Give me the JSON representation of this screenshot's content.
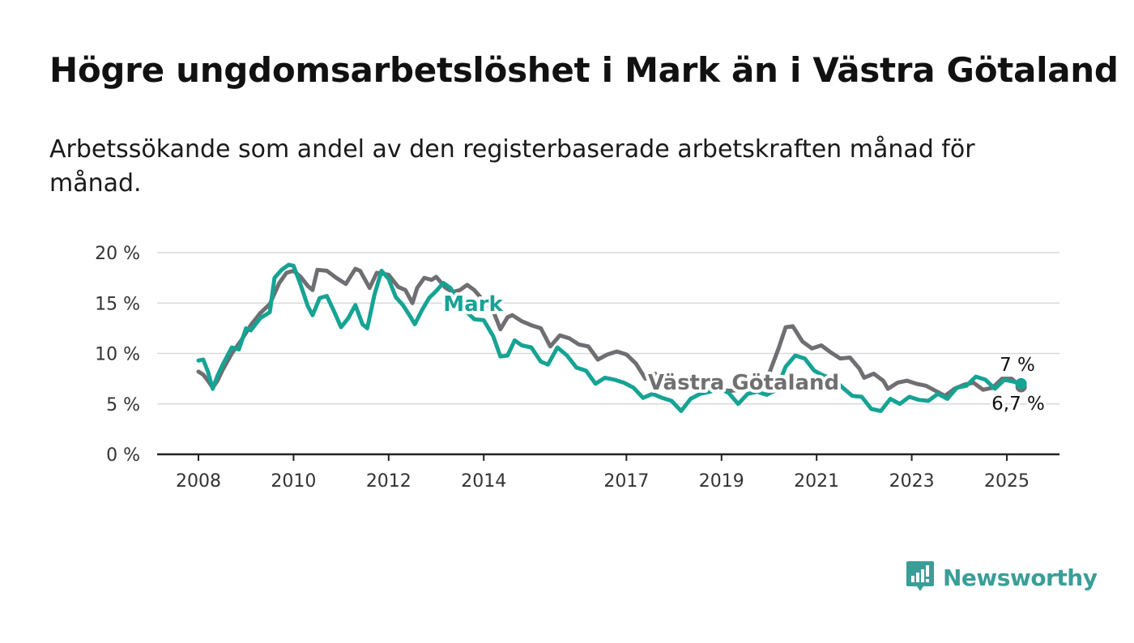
{
  "header": {
    "title": "Högre ungdomsarbetslöshet i Mark än i Västra Götaland",
    "subtitle": "Arbetssökande som andel av den registerbaserade arbetskraften månad för månad."
  },
  "brand": {
    "name": "Newsworthy",
    "color": "#3a9e98",
    "icon": "newsworthy-logo-icon"
  },
  "chart_data": {
    "type": "line",
    "xlabel": "",
    "ylabel": "",
    "ylim": [
      0,
      20
    ],
    "xlim": [
      2007.5,
      2026.5
    ],
    "y_ticks": [
      "0 %",
      "5 %",
      "10 %",
      "15 %",
      "20 %"
    ],
    "x_ticks": [
      "2008",
      "2010",
      "2012",
      "2014",
      "2017",
      "2019",
      "2021",
      "2023",
      "2025"
    ],
    "grid": true,
    "legend": "inline labels",
    "series": [
      {
        "name": "Västra Götaland",
        "color": "#6e6e73",
        "end_label": "6,7 %",
        "points": [
          [
            2008.0,
            8.2
          ],
          [
            2008.1,
            7.9
          ],
          [
            2008.2,
            7.3
          ],
          [
            2008.3,
            6.6
          ],
          [
            2008.4,
            7.3
          ],
          [
            2008.5,
            8.3
          ],
          [
            2008.7,
            10.0
          ],
          [
            2008.9,
            11.3
          ],
          [
            2009.1,
            12.8
          ],
          [
            2009.3,
            14.0
          ],
          [
            2009.5,
            14.9
          ],
          [
            2009.7,
            17.0
          ],
          [
            2009.85,
            18.0
          ],
          [
            2010.0,
            18.2
          ],
          [
            2010.15,
            17.6
          ],
          [
            2010.3,
            16.7
          ],
          [
            2010.4,
            16.3
          ],
          [
            2010.5,
            18.3
          ],
          [
            2010.7,
            18.2
          ],
          [
            2010.9,
            17.5
          ],
          [
            2011.1,
            16.9
          ],
          [
            2011.3,
            18.4
          ],
          [
            2011.4,
            18.2
          ],
          [
            2011.6,
            16.5
          ],
          [
            2011.75,
            18.0
          ],
          [
            2012.0,
            17.8
          ],
          [
            2012.2,
            16.6
          ],
          [
            2012.35,
            16.3
          ],
          [
            2012.5,
            15.0
          ],
          [
            2012.6,
            16.5
          ],
          [
            2012.75,
            17.5
          ],
          [
            2012.9,
            17.3
          ],
          [
            2013.0,
            17.6
          ],
          [
            2013.2,
            16.5
          ],
          [
            2013.35,
            16.1
          ],
          [
            2013.5,
            16.3
          ],
          [
            2013.65,
            16.8
          ],
          [
            2013.8,
            16.3
          ],
          [
            2014.0,
            15.2
          ],
          [
            2014.2,
            14.2
          ],
          [
            2014.35,
            12.4
          ],
          [
            2014.5,
            13.6
          ],
          [
            2014.6,
            13.8
          ],
          [
            2014.8,
            13.2
          ],
          [
            2015.0,
            12.8
          ],
          [
            2015.2,
            12.5
          ],
          [
            2015.4,
            10.7
          ],
          [
            2015.6,
            11.8
          ],
          [
            2015.8,
            11.5
          ],
          [
            2016.0,
            10.9
          ],
          [
            2016.2,
            10.7
          ],
          [
            2016.4,
            9.4
          ],
          [
            2016.6,
            9.9
          ],
          [
            2016.8,
            10.2
          ],
          [
            2017.0,
            9.9
          ],
          [
            2017.2,
            9.0
          ],
          [
            2017.4,
            7.5
          ],
          [
            2017.6,
            8.0
          ],
          [
            2017.8,
            7.3
          ],
          [
            2018.0,
            7.2
          ],
          [
            2018.3,
            6.6
          ],
          [
            2018.6,
            6.8
          ],
          [
            2018.9,
            6.4
          ],
          [
            2019.2,
            6.3
          ],
          [
            2019.5,
            6.5
          ],
          [
            2019.8,
            6.5
          ],
          [
            2020.0,
            8.0
          ],
          [
            2020.2,
            10.5
          ],
          [
            2020.35,
            12.6
          ],
          [
            2020.5,
            12.7
          ],
          [
            2020.7,
            11.2
          ],
          [
            2020.9,
            10.5
          ],
          [
            2021.1,
            10.8
          ],
          [
            2021.3,
            10.1
          ],
          [
            2021.5,
            9.5
          ],
          [
            2021.7,
            9.6
          ],
          [
            2021.9,
            8.5
          ],
          [
            2022.0,
            7.6
          ],
          [
            2022.2,
            8.0
          ],
          [
            2022.4,
            7.3
          ],
          [
            2022.5,
            6.5
          ],
          [
            2022.7,
            7.1
          ],
          [
            2022.9,
            7.3
          ],
          [
            2023.1,
            7.0
          ],
          [
            2023.3,
            6.8
          ],
          [
            2023.5,
            6.3
          ],
          [
            2023.7,
            5.8
          ],
          [
            2023.9,
            6.5
          ],
          [
            2024.1,
            6.9
          ],
          [
            2024.3,
            7.1
          ],
          [
            2024.5,
            6.4
          ],
          [
            2024.7,
            6.6
          ],
          [
            2024.9,
            7.5
          ],
          [
            2025.1,
            7.5
          ],
          [
            2025.3,
            6.7
          ]
        ]
      },
      {
        "name": "Mark",
        "color": "#16a394",
        "end_label": "7 %",
        "points": [
          [
            2008.0,
            9.3
          ],
          [
            2008.1,
            9.4
          ],
          [
            2008.2,
            8.2
          ],
          [
            2008.3,
            6.5
          ],
          [
            2008.4,
            7.8
          ],
          [
            2008.5,
            8.8
          ],
          [
            2008.7,
            10.6
          ],
          [
            2008.85,
            10.4
          ],
          [
            2009.0,
            12.5
          ],
          [
            2009.1,
            12.3
          ],
          [
            2009.3,
            13.5
          ],
          [
            2009.5,
            14.1
          ],
          [
            2009.6,
            17.5
          ],
          [
            2009.75,
            18.3
          ],
          [
            2009.9,
            18.8
          ],
          [
            2010.0,
            18.7
          ],
          [
            2010.15,
            16.8
          ],
          [
            2010.3,
            14.7
          ],
          [
            2010.4,
            13.8
          ],
          [
            2010.55,
            15.5
          ],
          [
            2010.7,
            15.7
          ],
          [
            2010.85,
            14.2
          ],
          [
            2011.0,
            12.6
          ],
          [
            2011.15,
            13.5
          ],
          [
            2011.3,
            14.8
          ],
          [
            2011.45,
            12.9
          ],
          [
            2011.55,
            12.5
          ],
          [
            2011.7,
            15.8
          ],
          [
            2011.85,
            18.2
          ],
          [
            2012.0,
            17.4
          ],
          [
            2012.15,
            15.6
          ],
          [
            2012.3,
            14.8
          ],
          [
            2012.45,
            13.7
          ],
          [
            2012.55,
            12.9
          ],
          [
            2012.7,
            14.3
          ],
          [
            2012.85,
            15.5
          ],
          [
            2013.0,
            16.2
          ],
          [
            2013.15,
            17.0
          ],
          [
            2013.3,
            16.5
          ],
          [
            2013.6,
            14.3
          ],
          [
            2013.8,
            13.4
          ],
          [
            2014.0,
            13.3
          ],
          [
            2014.2,
            11.7
          ],
          [
            2014.35,
            9.7
          ],
          [
            2014.5,
            9.8
          ],
          [
            2014.65,
            11.3
          ],
          [
            2014.8,
            10.8
          ],
          [
            2015.0,
            10.6
          ],
          [
            2015.2,
            9.2
          ],
          [
            2015.35,
            8.9
          ],
          [
            2015.55,
            10.6
          ],
          [
            2015.75,
            9.8
          ],
          [
            2015.95,
            8.6
          ],
          [
            2016.15,
            8.3
          ],
          [
            2016.35,
            7.0
          ],
          [
            2016.55,
            7.6
          ],
          [
            2016.75,
            7.4
          ],
          [
            2016.95,
            7.1
          ],
          [
            2017.15,
            6.6
          ],
          [
            2017.35,
            5.6
          ],
          [
            2017.55,
            6.0
          ],
          [
            2017.75,
            5.6
          ],
          [
            2017.95,
            5.3
          ],
          [
            2018.15,
            4.3
          ],
          [
            2018.35,
            5.5
          ],
          [
            2018.55,
            6.0
          ],
          [
            2018.75,
            6.2
          ],
          [
            2018.95,
            6.5
          ],
          [
            2019.15,
            6.1
          ],
          [
            2019.35,
            5.0
          ],
          [
            2019.55,
            6.0
          ],
          [
            2019.75,
            6.2
          ],
          [
            2019.95,
            5.9
          ],
          [
            2020.15,
            6.4
          ],
          [
            2020.35,
            8.7
          ],
          [
            2020.55,
            9.8
          ],
          [
            2020.75,
            9.5
          ],
          [
            2020.95,
            8.3
          ],
          [
            2021.15,
            7.8
          ],
          [
            2021.35,
            7.5
          ],
          [
            2021.55,
            6.6
          ],
          [
            2021.75,
            5.8
          ],
          [
            2021.95,
            5.7
          ],
          [
            2022.15,
            4.5
          ],
          [
            2022.35,
            4.3
          ],
          [
            2022.55,
            5.5
          ],
          [
            2022.75,
            5.0
          ],
          [
            2022.95,
            5.7
          ],
          [
            2023.15,
            5.4
          ],
          [
            2023.35,
            5.3
          ],
          [
            2023.55,
            6.0
          ],
          [
            2023.75,
            5.5
          ],
          [
            2023.95,
            6.6
          ],
          [
            2024.15,
            6.8
          ],
          [
            2024.35,
            7.7
          ],
          [
            2024.55,
            7.4
          ],
          [
            2024.75,
            6.5
          ],
          [
            2024.95,
            7.4
          ],
          [
            2025.15,
            7.2
          ],
          [
            2025.3,
            7.0
          ]
        ]
      }
    ]
  }
}
